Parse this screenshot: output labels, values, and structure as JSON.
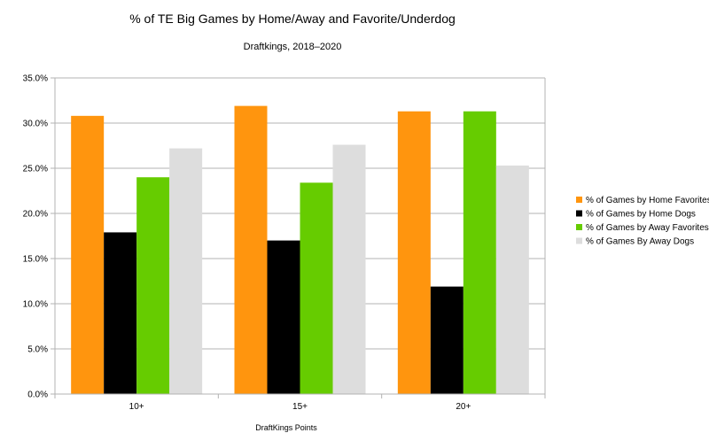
{
  "chart_data": {
    "type": "bar",
    "title": "% of TE Big Games by Home/Away and Favorite/Underdog",
    "subtitle": "Draftkings, 2018–2020",
    "xlabel": "DraftKings Points",
    "ylabel": "",
    "ylim": [
      0,
      35
    ],
    "y_ticks": [
      0,
      5,
      10,
      15,
      20,
      25,
      30,
      35
    ],
    "y_tick_labels": [
      "0.0%",
      "5.0%",
      "10.0%",
      "15.0%",
      "20.0%",
      "25.0%",
      "30.0%",
      "35.0%"
    ],
    "grid": true,
    "legend_position": "right",
    "categories": [
      "10+",
      "15+",
      "20+"
    ],
    "series": [
      {
        "name": "% of Games by Home Favorites",
        "color": "#ff950e",
        "values": [
          30.8,
          31.9,
          31.3
        ]
      },
      {
        "name": "% of Games by Home Dogs",
        "color": "#000000",
        "values": [
          17.9,
          17.0,
          11.9
        ]
      },
      {
        "name": "% of Games by Away Favorites",
        "color": "#66cc00",
        "values": [
          24.0,
          23.4,
          31.3
        ]
      },
      {
        "name": "% of Games By Away Dogs",
        "color": "#dddddd",
        "values": [
          27.2,
          27.6,
          25.3
        ]
      }
    ]
  }
}
